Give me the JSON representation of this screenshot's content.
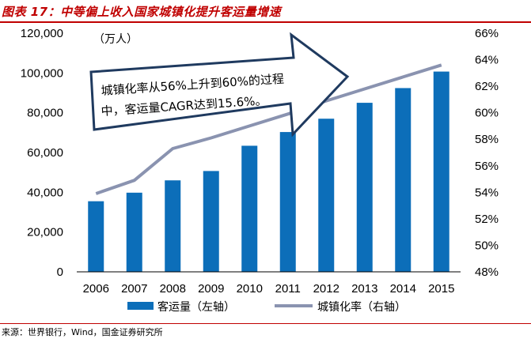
{
  "header": {
    "title": "图表 17：中等偏上收入国家城镇化提升客运量增速"
  },
  "footer": {
    "source": "来源：世界银行，Wind，国金证券研究所"
  },
  "colors": {
    "bar": "#0c6eb9",
    "line": "#8a93b0",
    "accent": "#c00000",
    "arrow_border": "#1f3a5f"
  },
  "chart_data": {
    "type": "bar",
    "categories": [
      "2006",
      "2007",
      "2008",
      "2009",
      "2010",
      "2011",
      "2012",
      "2013",
      "2014",
      "2015"
    ],
    "unit_label": "（万人）",
    "y_left": {
      "ylim": [
        0,
        120000
      ],
      "ticks": [
        "0",
        "20,000",
        "40,000",
        "60,000",
        "80,000",
        "100,000",
        "120,000"
      ]
    },
    "y_right": {
      "ylim": [
        48,
        66
      ],
      "ticks": [
        "48%",
        "50%",
        "52%",
        "54%",
        "56%",
        "58%",
        "60%",
        "62%",
        "64%",
        "66%"
      ]
    },
    "series": [
      {
        "name": "客运量（左轴）",
        "type": "bar",
        "axis": "left",
        "values": [
          35500,
          39800,
          46000,
          50700,
          63400,
          70300,
          77000,
          85000,
          92400,
          100700
        ]
      },
      {
        "name": "城镇化率（右轴）",
        "type": "line",
        "axis": "right",
        "values": [
          53.9,
          54.9,
          57.3,
          58.1,
          59.0,
          59.9,
          60.9,
          61.8,
          62.7,
          63.6
        ]
      }
    ],
    "annotation": {
      "line1": "城镇化率从56%上升到60%的过程",
      "line2": "中，客运量CAGR达到15.6%。"
    }
  }
}
